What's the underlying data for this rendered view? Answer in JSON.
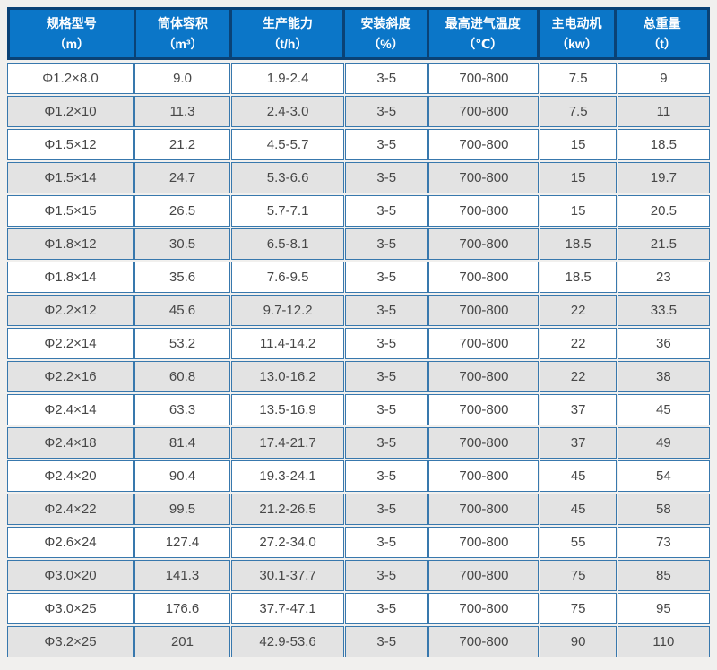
{
  "table": {
    "colors": {
      "header_bg": "#0b76c8",
      "header_frame": "#0a4276",
      "header_text": "#ffffff",
      "cell_border": "#3878ad",
      "row_bg": "#ffffff",
      "row_alt_bg": "#e3e3e3",
      "body_text": "#474747",
      "page_bg": "#f1f0ee"
    },
    "columns": [
      {
        "title": "规格型号",
        "unit": "（m）"
      },
      {
        "title": "筒体容积",
        "unit": "（m³）"
      },
      {
        "title": "生产能力",
        "unit": "（t/h）"
      },
      {
        "title": "安装斜度",
        "unit": "（%）"
      },
      {
        "title": "最高进气温度",
        "unit": "（℃）"
      },
      {
        "title": "主电动机",
        "unit": "（kw）"
      },
      {
        "title": "总重量",
        "unit": "（t）"
      }
    ],
    "rows": [
      [
        "Φ1.2×8.0",
        "9.0",
        "1.9-2.4",
        "3-5",
        "700-800",
        "7.5",
        "9"
      ],
      [
        "Φ1.2×10",
        "11.3",
        "2.4-3.0",
        "3-5",
        "700-800",
        "7.5",
        "11"
      ],
      [
        "Φ1.5×12",
        "21.2",
        "4.5-5.7",
        "3-5",
        "700-800",
        "15",
        "18.5"
      ],
      [
        "Φ1.5×14",
        "24.7",
        "5.3-6.6",
        "3-5",
        "700-800",
        "15",
        "19.7"
      ],
      [
        "Φ1.5×15",
        "26.5",
        "5.7-7.1",
        "3-5",
        "700-800",
        "15",
        "20.5"
      ],
      [
        "Φ1.8×12",
        "30.5",
        "6.5-8.1",
        "3-5",
        "700-800",
        "18.5",
        "21.5"
      ],
      [
        "Φ1.8×14",
        "35.6",
        "7.6-9.5",
        "3-5",
        "700-800",
        "18.5",
        "23"
      ],
      [
        "Φ2.2×12",
        "45.6",
        "9.7-12.2",
        "3-5",
        "700-800",
        "22",
        "33.5"
      ],
      [
        "Φ2.2×14",
        "53.2",
        "11.4-14.2",
        "3-5",
        "700-800",
        "22",
        "36"
      ],
      [
        "Φ2.2×16",
        "60.8",
        "13.0-16.2",
        "3-5",
        "700-800",
        "22",
        "38"
      ],
      [
        "Φ2.4×14",
        "63.3",
        "13.5-16.9",
        "3-5",
        "700-800",
        "37",
        "45"
      ],
      [
        "Φ2.4×18",
        "81.4",
        "17.4-21.7",
        "3-5",
        "700-800",
        "37",
        "49"
      ],
      [
        "Φ2.4×20",
        "90.4",
        "19.3-24.1",
        "3-5",
        "700-800",
        "45",
        "54"
      ],
      [
        "Φ2.4×22",
        "99.5",
        "21.2-26.5",
        "3-5",
        "700-800",
        "45",
        "58"
      ],
      [
        "Φ2.6×24",
        "127.4",
        "27.2-34.0",
        "3-5",
        "700-800",
        "55",
        "73"
      ],
      [
        "Φ3.0×20",
        "141.3",
        "30.1-37.7",
        "3-5",
        "700-800",
        "75",
        "85"
      ],
      [
        "Φ3.0×25",
        "176.6",
        "37.7-47.1",
        "3-5",
        "700-800",
        "75",
        "95"
      ],
      [
        "Φ3.2×25",
        "201",
        "42.9-53.6",
        "3-5",
        "700-800",
        "90",
        "110"
      ]
    ]
  }
}
